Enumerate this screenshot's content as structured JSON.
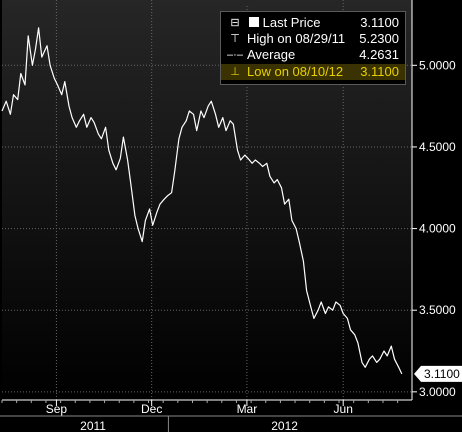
{
  "legend": {
    "last_price": {
      "label": "Last Price",
      "value": "3.1100"
    },
    "high": {
      "label": "High on 08/29/11",
      "value": "5.2300"
    },
    "average": {
      "label": "Average",
      "value": "4.2631"
    },
    "low": {
      "label": "Low on 08/10/12",
      "value": "3.1100"
    }
  },
  "colors": {
    "line": "#ffffff",
    "background": "#000000",
    "grid": "#666666",
    "highlight_text": "#e8d000",
    "highlight_bg": "#3a3200"
  },
  "chart_data": {
    "type": "line",
    "title": "",
    "xlabel": "",
    "ylabel": "",
    "ylim": [
      2.95,
      5.4
    ],
    "x_range": [
      "2011-07-25",
      "2012-08-14"
    ],
    "y_ticks": [
      "3.0000",
      "3.5000",
      "4.0000",
      "4.5000",
      "5.0000"
    ],
    "month_ticks": [
      {
        "label": "Sep",
        "date": "2011-09-15"
      },
      {
        "label": "Dec",
        "date": "2011-12-15"
      },
      {
        "label": "Mar",
        "date": "2012-03-15"
      },
      {
        "label": "Jun",
        "date": "2012-06-15"
      }
    ],
    "year_labels": [
      {
        "label": "2011",
        "date": "2011-10-20"
      },
      {
        "label": "2012",
        "date": "2012-04-20"
      }
    ],
    "last_value_label": "3.1100",
    "grid": true,
    "series": [
      {
        "x": [
          "2011-07-25",
          "2011-07-29",
          "2011-08-02",
          "2011-08-05",
          "2011-08-09",
          "2011-08-12",
          "2011-08-16",
          "2011-08-19",
          "2011-08-23",
          "2011-08-26",
          "2011-08-29",
          "2011-09-01",
          "2011-09-06",
          "2011-09-09",
          "2011-09-13",
          "2011-09-16",
          "2011-09-20",
          "2011-09-23",
          "2011-09-27",
          "2011-09-30",
          "2011-10-04",
          "2011-10-07",
          "2011-10-11",
          "2011-10-14",
          "2011-10-18",
          "2011-10-21",
          "2011-10-25",
          "2011-10-28",
          "2011-11-01",
          "2011-11-04",
          "2011-11-08",
          "2011-11-11",
          "2011-11-15",
          "2011-11-18",
          "2011-11-22",
          "2011-11-25",
          "2011-11-29",
          "2011-12-02",
          "2011-12-06",
          "2011-12-09",
          "2011-12-13",
          "2011-12-16",
          "2011-12-20",
          "2011-12-23",
          "2011-12-27",
          "2011-12-30",
          "2012-01-03",
          "2012-01-06",
          "2012-01-10",
          "2012-01-13",
          "2012-01-17",
          "2012-01-20",
          "2012-01-24",
          "2012-01-27",
          "2012-01-31",
          "2012-02-03",
          "2012-02-07",
          "2012-02-10",
          "2012-02-14",
          "2012-02-17",
          "2012-02-21",
          "2012-02-24",
          "2012-02-28",
          "2012-03-02",
          "2012-03-06",
          "2012-03-09",
          "2012-03-13",
          "2012-03-16",
          "2012-03-20",
          "2012-03-23",
          "2012-03-27",
          "2012-03-30",
          "2012-04-03",
          "2012-04-06",
          "2012-04-10",
          "2012-04-13",
          "2012-04-17",
          "2012-04-20",
          "2012-04-24",
          "2012-04-27",
          "2012-05-01",
          "2012-05-04",
          "2012-05-08",
          "2012-05-11",
          "2012-05-15",
          "2012-05-18",
          "2012-05-22",
          "2012-05-25",
          "2012-05-29",
          "2012-06-01",
          "2012-06-05",
          "2012-06-08",
          "2012-06-12",
          "2012-06-15",
          "2012-06-19",
          "2012-06-22",
          "2012-06-26",
          "2012-06-29",
          "2012-07-03",
          "2012-07-06",
          "2012-07-10",
          "2012-07-13",
          "2012-07-17",
          "2012-07-20",
          "2012-07-24",
          "2012-07-27",
          "2012-07-31",
          "2012-08-03",
          "2012-08-07",
          "2012-08-10"
        ],
        "y": [
          4.72,
          4.78,
          4.7,
          4.82,
          4.79,
          4.95,
          4.88,
          5.18,
          5.0,
          5.1,
          5.23,
          5.05,
          5.12,
          5.0,
          4.92,
          4.88,
          4.82,
          4.9,
          4.75,
          4.68,
          4.62,
          4.66,
          4.7,
          4.62,
          4.68,
          4.65,
          4.58,
          4.55,
          4.62,
          4.48,
          4.4,
          4.36,
          4.43,
          4.56,
          4.42,
          4.28,
          4.08,
          4.0,
          3.92,
          4.05,
          4.12,
          4.02,
          4.1,
          4.15,
          4.18,
          4.2,
          4.22,
          4.35,
          4.55,
          4.62,
          4.66,
          4.72,
          4.7,
          4.6,
          4.72,
          4.68,
          4.75,
          4.78,
          4.7,
          4.62,
          4.68,
          4.6,
          4.66,
          4.64,
          4.48,
          4.42,
          4.45,
          4.43,
          4.4,
          4.42,
          4.4,
          4.38,
          4.4,
          4.32,
          4.28,
          4.3,
          4.25,
          4.15,
          4.18,
          4.05,
          4.0,
          3.92,
          3.8,
          3.62,
          3.52,
          3.45,
          3.5,
          3.55,
          3.48,
          3.52,
          3.5,
          3.55,
          3.53,
          3.48,
          3.45,
          3.38,
          3.35,
          3.3,
          3.18,
          3.15,
          3.2,
          3.22,
          3.18,
          3.2,
          3.25,
          3.22,
          3.28,
          3.2,
          3.15,
          3.11
        ]
      }
    ]
  }
}
